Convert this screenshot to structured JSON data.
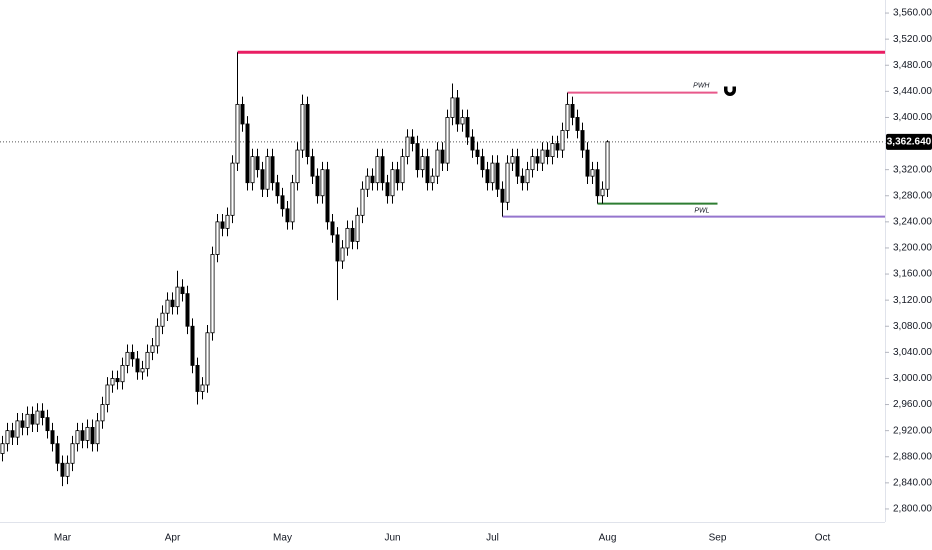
{
  "chart_data": {
    "type": "candlestick",
    "categories": [
      null,
      null,
      null,
      null,
      null,
      null,
      null,
      null,
      null,
      null,
      null,
      null,
      "Mar",
      null,
      null,
      null,
      null,
      null,
      null,
      null,
      null,
      null,
      null,
      null,
      null,
      null,
      null,
      null,
      null,
      null,
      null,
      null,
      null,
      null,
      "Apr",
      null,
      null,
      null,
      null,
      null,
      null,
      null,
      null,
      null,
      null,
      null,
      null,
      null,
      null,
      null,
      null,
      null,
      null,
      null,
      null,
      null,
      "May",
      null,
      null,
      null,
      null,
      null,
      null,
      null,
      null,
      null,
      null,
      null,
      null,
      null,
      null,
      null,
      null,
      null,
      null,
      null,
      null,
      null,
      "Jun",
      null,
      null,
      null,
      null,
      null,
      null,
      null,
      null,
      null,
      null,
      null,
      null,
      null,
      null,
      null,
      null,
      null,
      null,
      null,
      "Jul",
      null,
      null,
      null,
      null,
      null,
      null,
      null,
      null,
      null,
      null,
      null,
      null,
      null,
      null,
      null,
      null,
      null,
      null,
      null,
      null,
      null,
      null,
      "Aug",
      null,
      null,
      null,
      null,
      null,
      null,
      null,
      null,
      null,
      null,
      null,
      null,
      null,
      null,
      null,
      null,
      null,
      null,
      null,
      null,
      null,
      "Sep",
      null,
      null,
      null,
      null,
      null,
      null,
      null,
      null,
      null,
      null,
      null,
      null,
      null,
      null,
      null,
      null,
      null,
      null,
      null,
      null,
      "Oct",
      null,
      null,
      null,
      null,
      null,
      null,
      null,
      null,
      null,
      null,
      null,
      null
    ],
    "open": [
      2885,
      2900,
      2920,
      2910,
      2935,
      2925,
      2945,
      2930,
      2950,
      2940,
      2920,
      2900,
      2870,
      2850,
      2870,
      2900,
      2920,
      2905,
      2925,
      2900,
      2935,
      2960,
      2990,
      3000,
      2995,
      3020,
      3040,
      3030,
      3010,
      3015,
      3040,
      3050,
      3080,
      3100,
      3120,
      3110,
      3140,
      3130,
      3080,
      3020,
      2980,
      2990,
      3070,
      3190,
      3240,
      3230,
      3250,
      3330,
      3420,
      3390,
      3300,
      3340,
      3320,
      3290,
      3340,
      3300,
      3280,
      3260,
      3240,
      3300,
      3350,
      3420,
      3340,
      3310,
      3280,
      3320,
      3240,
      3220,
      3180,
      3200,
      3230,
      3210,
      3250,
      3290,
      3310,
      3300,
      3340,
      3300,
      3280,
      3320,
      3300,
      3340,
      3370,
      3360,
      3320,
      3340,
      3300,
      3310,
      3350,
      3330,
      3400,
      3430,
      3390,
      3400,
      3370,
      3350,
      3340,
      3320,
      3300,
      3330,
      3290,
      3270,
      3330,
      3340,
      3310,
      3300,
      3320,
      3340,
      3330,
      3350,
      3340,
      3360,
      3350,
      3380,
      3420,
      3400,
      3380,
      3350,
      3310,
      3320,
      3280,
      3290,
      null,
      null,
      null,
      null,
      null,
      null,
      null,
      null,
      null,
      null,
      null,
      null,
      null,
      null,
      null,
      null,
      null,
      null,
      null,
      null,
      null,
      null,
      null,
      null,
      null,
      null,
      null,
      null,
      null,
      null,
      null,
      null,
      null,
      null,
      null,
      null,
      null,
      null,
      null,
      null,
      null,
      null,
      null,
      null,
      null,
      null,
      null,
      null,
      null,
      null,
      null,
      null,
      null,
      null,
      null
    ],
    "high": [
      2912,
      2932,
      2932,
      2947,
      2947,
      2957,
      2957,
      2962,
      2962,
      2952,
      2932,
      2912,
      2882,
      2882,
      2912,
      2932,
      2932,
      2937,
      2937,
      2947,
      2972,
      3002,
      3012,
      3012,
      3032,
      3052,
      3052,
      3042,
      3027,
      3052,
      3062,
      3092,
      3112,
      3132,
      3132,
      3165,
      3152,
      3142,
      3092,
      3032,
      3002,
      3082,
      3202,
      3252,
      3252,
      3262,
      3342,
      3500,
      3432,
      3402,
      3352,
      3352,
      3332,
      3352,
      3352,
      3312,
      3292,
      3272,
      3312,
      3362,
      3435,
      3432,
      3352,
      3322,
      3332,
      3332,
      3252,
      3232,
      3212,
      3242,
      3242,
      3262,
      3302,
      3322,
      3322,
      3352,
      3352,
      3312,
      3332,
      3332,
      3352,
      3382,
      3382,
      3372,
      3352,
      3352,
      3322,
      3362,
      3362,
      3412,
      3452,
      3442,
      3412,
      3412,
      3382,
      3362,
      3352,
      3332,
      3342,
      3342,
      3302,
      3342,
      3352,
      3352,
      3322,
      3332,
      3352,
      3352,
      3362,
      3362,
      3372,
      3372,
      3392,
      3438,
      3432,
      3412,
      3392,
      3362,
      3332,
      3332,
      3302,
      3365,
      null,
      null,
      null,
      null,
      null,
      null,
      null,
      null,
      null,
      null,
      null,
      null,
      null,
      null,
      null,
      null,
      null,
      null,
      null,
      null,
      null,
      null,
      null,
      null,
      null,
      null,
      null,
      null,
      null,
      null,
      null,
      null,
      null,
      null,
      null,
      null,
      null,
      null,
      null,
      null,
      null,
      null,
      null,
      null,
      null,
      null,
      null,
      null,
      null,
      null,
      null,
      null,
      null,
      null,
      null
    ],
    "low": [
      2873,
      2888,
      2898,
      2898,
      2913,
      2913,
      2918,
      2918,
      2928,
      2908,
      2888,
      2858,
      2835,
      2838,
      2858,
      2888,
      2893,
      2893,
      2888,
      2888,
      2923,
      2948,
      2978,
      2983,
      2983,
      3008,
      3018,
      2998,
      2998,
      3003,
      3028,
      3038,
      3068,
      3088,
      3098,
      3098,
      3118,
      3068,
      3008,
      2960,
      2968,
      2978,
      3058,
      3178,
      3218,
      3218,
      3238,
      3318,
      3378,
      3288,
      3288,
      3308,
      3278,
      3278,
      3288,
      3268,
      3248,
      3228,
      3228,
      3288,
      3338,
      3328,
      3298,
      3268,
      3268,
      3228,
      3208,
      3120,
      3168,
      3188,
      3198,
      3198,
      3238,
      3278,
      3288,
      3288,
      3288,
      3268,
      3268,
      3288,
      3288,
      3328,
      3348,
      3308,
      3308,
      3288,
      3288,
      3298,
      3318,
      3318,
      3388,
      3378,
      3378,
      3358,
      3338,
      3328,
      3308,
      3288,
      3288,
      3278,
      3248,
      3258,
      3318,
      3298,
      3288,
      3288,
      3308,
      3318,
      3318,
      3328,
      3328,
      3338,
      3338,
      3368,
      3388,
      3368,
      3338,
      3298,
      3298,
      3268,
      3268,
      3278,
      null,
      null,
      null,
      null,
      null,
      null,
      null,
      null,
      null,
      null,
      null,
      null,
      null,
      null,
      null,
      null,
      null,
      null,
      null,
      null,
      null,
      null,
      null,
      null,
      null,
      null,
      null,
      null,
      null,
      null,
      null,
      null,
      null,
      null,
      null,
      null,
      null,
      null,
      null,
      null,
      null,
      null,
      null,
      null,
      null,
      null,
      null,
      null,
      null,
      null,
      null,
      null,
      null,
      null,
      null
    ],
    "close": [
      2900,
      2920,
      2910,
      2935,
      2925,
      2945,
      2930,
      2950,
      2940,
      2920,
      2900,
      2870,
      2850,
      2870,
      2900,
      2920,
      2905,
      2925,
      2900,
      2935,
      2960,
      2990,
      3000,
      2995,
      3020,
      3040,
      3030,
      3010,
      3015,
      3040,
      3050,
      3080,
      3100,
      3120,
      3110,
      3140,
      3130,
      3080,
      3020,
      2980,
      2990,
      3070,
      3190,
      3240,
      3230,
      3250,
      3330,
      3420,
      3390,
      3300,
      3340,
      3320,
      3290,
      3340,
      3300,
      3280,
      3260,
      3240,
      3300,
      3350,
      3420,
      3340,
      3310,
      3280,
      3320,
      3240,
      3220,
      3180,
      3200,
      3230,
      3210,
      3250,
      3290,
      3310,
      3300,
      3340,
      3300,
      3280,
      3320,
      3300,
      3340,
      3370,
      3360,
      3320,
      3340,
      3300,
      3310,
      3350,
      3330,
      3400,
      3430,
      3390,
      3400,
      3370,
      3350,
      3340,
      3320,
      3300,
      3330,
      3290,
      3270,
      3330,
      3340,
      3310,
      3300,
      3320,
      3340,
      3330,
      3350,
      3340,
      3360,
      3350,
      3380,
      3420,
      3400,
      3380,
      3350,
      3310,
      3320,
      3280,
      3290,
      3362.64,
      null,
      null,
      null,
      null,
      null,
      null,
      null,
      null,
      null,
      null,
      null,
      null,
      null,
      null,
      null,
      null,
      null,
      null,
      null,
      null,
      null,
      null,
      null,
      null,
      null,
      null,
      null,
      null,
      null,
      null,
      null,
      null,
      null,
      null,
      null,
      null,
      null,
      null,
      null,
      null,
      null,
      null,
      null,
      null,
      null,
      null,
      null,
      null,
      null,
      null,
      null,
      null,
      null,
      null,
      null
    ],
    "up_color": "#ffffff",
    "down_color": "#000000",
    "wick_color": "#000000",
    "ylim": [
      2780,
      3580
    ],
    "yticks": [
      {
        "value": 2800,
        "label": "2,800.000"
      },
      {
        "value": 2840,
        "label": "2,840.000"
      },
      {
        "value": 2880,
        "label": "2,880.000"
      },
      {
        "value": 2920,
        "label": "2,920.000"
      },
      {
        "value": 2960,
        "label": "2,960.000"
      },
      {
        "value": 3000,
        "label": "3,000.000"
      },
      {
        "value": 3040,
        "label": "3,040.000"
      },
      {
        "value": 3080,
        "label": "3,080.000"
      },
      {
        "value": 3120,
        "label": "3,120.000"
      },
      {
        "value": 3160,
        "label": "3,160.000"
      },
      {
        "value": 3200,
        "label": "3,200.000"
      },
      {
        "value": 3240,
        "label": "3,240.000"
      },
      {
        "value": 3280,
        "label": "3,280.000"
      },
      {
        "value": 3320,
        "label": "3,320.000"
      },
      {
        "value": 3360,
        "label": "3,360.000"
      },
      {
        "value": 3400,
        "label": "3,400.000"
      },
      {
        "value": 3440,
        "label": "3,440.000"
      },
      {
        "value": 3480,
        "label": "3,480.000"
      },
      {
        "value": 3520,
        "label": "3,520.000"
      },
      {
        "value": 3560,
        "label": "3,560.000"
      }
    ],
    "grid": false,
    "levels": [
      {
        "value": 3500,
        "color": "#e91e63"
      },
      {
        "name": "PWH",
        "value": 3438,
        "color": "#e8588a"
      },
      {
        "name": "PWL",
        "value": 3268,
        "color": "#2e7d32"
      },
      {
        "value": 3248,
        "color": "#9575cd"
      }
    ],
    "last_price": {
      "value": 3362.64,
      "label": "3,362.640",
      "color": "#000000"
    }
  }
}
